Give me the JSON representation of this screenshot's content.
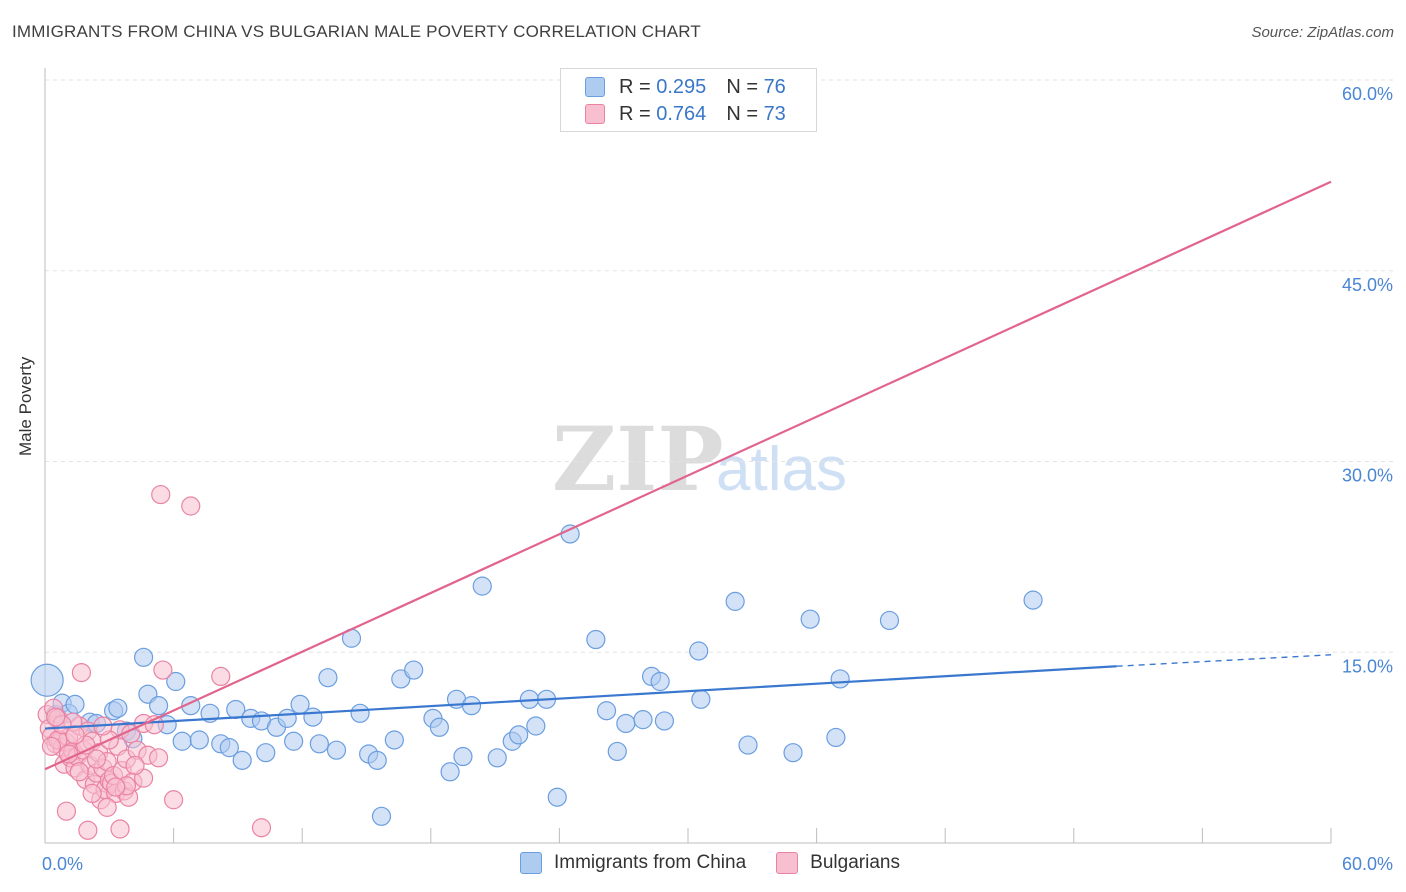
{
  "title": "IMMIGRANTS FROM CHINA VS BULGARIAN MALE POVERTY CORRELATION CHART",
  "source": "Source: ZipAtlas.com",
  "watermark": {
    "zip": "ZIP",
    "atlas": "atlas"
  },
  "legend": {
    "series1": {
      "r_label": "R =",
      "r_value": "0.295",
      "n_label": "N =",
      "n_value": "76"
    },
    "series2": {
      "r_label": "R =",
      "r_value": "0.764",
      "n_label": "N =",
      "n_value": "73"
    }
  },
  "colors": {
    "blue_fill": "#aecbf0",
    "blue_stroke": "#6b9ee0",
    "blue_line": "#3a78d0",
    "pink_fill": "#f7bfd0",
    "pink_stroke": "#ea83a3",
    "pink_line": "#e2648d",
    "tick": "#4a86d4",
    "grid": "#e3e3e3"
  },
  "chart_data": {
    "type": "scatter",
    "xlabel": "",
    "ylabel": "Male Poverty",
    "xlim": [
      0,
      60
    ],
    "ylim": [
      0,
      60
    ],
    "x_tick_labels": [
      "0.0%",
      "60.0%"
    ],
    "y_ticks": [
      15,
      30,
      45,
      60
    ],
    "y_tick_labels": [
      "15.0%",
      "30.0%",
      "45.0%",
      "60.0%"
    ],
    "grid": true,
    "legend_position": "bottom",
    "series": [
      {
        "name": "Immigrants from China",
        "color": "#6b9ee0",
        "trend": {
          "x": [
            0,
            50
          ],
          "y": [
            9.0,
            13.9
          ],
          "dashed_to": [
            60,
            14.8
          ]
        },
        "points": [
          [
            0.1,
            12.8
          ],
          [
            0.5,
            10.1
          ],
          [
            0.8,
            11.0
          ],
          [
            1.1,
            10.2
          ],
          [
            1.4,
            10.9
          ],
          [
            2.1,
            9.5
          ],
          [
            2.4,
            9.4
          ],
          [
            3.2,
            10.4
          ],
          [
            3.4,
            10.6
          ],
          [
            3.8,
            8.8
          ],
          [
            4.1,
            8.2
          ],
          [
            4.6,
            14.6
          ],
          [
            4.8,
            11.7
          ],
          [
            5.3,
            10.8
          ],
          [
            5.7,
            9.3
          ],
          [
            6.1,
            12.7
          ],
          [
            6.4,
            8.0
          ],
          [
            6.8,
            10.8
          ],
          [
            7.2,
            8.1
          ],
          [
            7.7,
            10.2
          ],
          [
            8.2,
            7.8
          ],
          [
            8.6,
            7.5
          ],
          [
            8.9,
            10.5
          ],
          [
            9.2,
            6.5
          ],
          [
            9.6,
            9.8
          ],
          [
            10.1,
            9.6
          ],
          [
            10.3,
            7.1
          ],
          [
            10.8,
            9.1
          ],
          [
            11.3,
            9.8
          ],
          [
            11.6,
            8.0
          ],
          [
            11.9,
            10.9
          ],
          [
            12.5,
            9.9
          ],
          [
            12.8,
            7.8
          ],
          [
            13.2,
            13.0
          ],
          [
            13.6,
            7.3
          ],
          [
            14.3,
            16.1
          ],
          [
            14.7,
            10.2
          ],
          [
            15.1,
            7.0
          ],
          [
            15.5,
            6.5
          ],
          [
            15.7,
            2.1
          ],
          [
            16.3,
            8.1
          ],
          [
            16.6,
            12.9
          ],
          [
            17.2,
            13.6
          ],
          [
            18.1,
            9.8
          ],
          [
            18.4,
            9.1
          ],
          [
            18.9,
            5.6
          ],
          [
            19.2,
            11.3
          ],
          [
            19.5,
            6.8
          ],
          [
            19.9,
            10.8
          ],
          [
            20.4,
            20.2
          ],
          [
            21.1,
            6.7
          ],
          [
            21.8,
            8.0
          ],
          [
            22.1,
            8.5
          ],
          [
            22.6,
            11.3
          ],
          [
            22.9,
            9.2
          ],
          [
            23.4,
            11.3
          ],
          [
            23.9,
            3.6
          ],
          [
            24.5,
            24.3
          ],
          [
            25.7,
            16.0
          ],
          [
            26.2,
            10.4
          ],
          [
            26.7,
            7.2
          ],
          [
            27.1,
            9.4
          ],
          [
            27.9,
            9.7
          ],
          [
            28.3,
            13.1
          ],
          [
            28.7,
            12.7
          ],
          [
            28.9,
            9.6
          ],
          [
            30.5,
            15.1
          ],
          [
            30.6,
            11.3
          ],
          [
            32.2,
            19.0
          ],
          [
            32.8,
            7.7
          ],
          [
            34.9,
            7.1
          ],
          [
            35.7,
            17.6
          ],
          [
            36.9,
            8.3
          ],
          [
            37.1,
            12.9
          ],
          [
            39.4,
            17.5
          ],
          [
            46.1,
            19.1
          ]
        ]
      },
      {
        "name": "Bulgarians",
        "color": "#ea83a3",
        "trend": {
          "x": [
            0,
            60
          ],
          "y": [
            5.8,
            52.0
          ]
        },
        "points": [
          [
            0.1,
            10.1
          ],
          [
            0.2,
            9.0
          ],
          [
            0.3,
            8.4
          ],
          [
            0.4,
            10.6
          ],
          [
            0.5,
            7.8
          ],
          [
            0.6,
            9.8
          ],
          [
            0.7,
            8.1
          ],
          [
            0.8,
            7.5
          ],
          [
            0.9,
            6.2
          ],
          [
            1.0,
            7.9
          ],
          [
            1.1,
            8.3
          ],
          [
            1.2,
            6.7
          ],
          [
            1.3,
            7.2
          ],
          [
            1.4,
            5.9
          ],
          [
            1.5,
            6.8
          ],
          [
            1.6,
            9.2
          ],
          [
            1.7,
            13.4
          ],
          [
            1.8,
            7.3
          ],
          [
            1.9,
            5.0
          ],
          [
            2.0,
            8.8
          ],
          [
            2.1,
            6.1
          ],
          [
            2.2,
            8.0
          ],
          [
            2.3,
            4.6
          ],
          [
            2.4,
            5.5
          ],
          [
            2.5,
            7.1
          ],
          [
            2.6,
            3.4
          ],
          [
            2.7,
            5.9
          ],
          [
            2.8,
            4.2
          ],
          [
            2.9,
            6.4
          ],
          [
            3.0,
            4.9
          ],
          [
            3.1,
            4.7
          ],
          [
            3.2,
            5.3
          ],
          [
            3.3,
            3.9
          ],
          [
            3.4,
            7.6
          ],
          [
            3.5,
            8.9
          ],
          [
            3.6,
            5.7
          ],
          [
            3.7,
            4.1
          ],
          [
            3.8,
            6.6
          ],
          [
            3.9,
            3.6
          ],
          [
            4.0,
            8.6
          ],
          [
            4.1,
            4.8
          ],
          [
            4.3,
            7.3
          ],
          [
            4.6,
            9.4
          ],
          [
            4.8,
            6.9
          ],
          [
            5.1,
            9.3
          ],
          [
            5.3,
            6.7
          ],
          [
            5.4,
            27.4
          ],
          [
            5.5,
            13.6
          ],
          [
            6.0,
            3.4
          ],
          [
            6.8,
            26.5
          ],
          [
            8.2,
            13.1
          ],
          [
            10.1,
            1.2
          ],
          [
            3.5,
            1.1
          ],
          [
            2.0,
            1.0
          ],
          [
            1.0,
            2.5
          ],
          [
            0.6,
            8.1
          ],
          [
            1.3,
            9.5
          ],
          [
            2.4,
            6.6
          ],
          [
            3.0,
            8.1
          ],
          [
            3.8,
            4.5
          ],
          [
            4.6,
            5.1
          ],
          [
            1.6,
            5.6
          ],
          [
            0.8,
            9.3
          ],
          [
            2.9,
            2.8
          ],
          [
            1.1,
            7.0
          ],
          [
            0.3,
            7.6
          ],
          [
            1.9,
            7.7
          ],
          [
            2.7,
            9.2
          ],
          [
            3.3,
            4.4
          ],
          [
            0.5,
            9.9
          ],
          [
            1.4,
            8.5
          ],
          [
            4.2,
            6.1
          ],
          [
            2.2,
            3.9
          ]
        ]
      }
    ]
  },
  "bottom_legend": {
    "series1_label": "Immigrants from China",
    "series2_label": "Bulgarians"
  }
}
